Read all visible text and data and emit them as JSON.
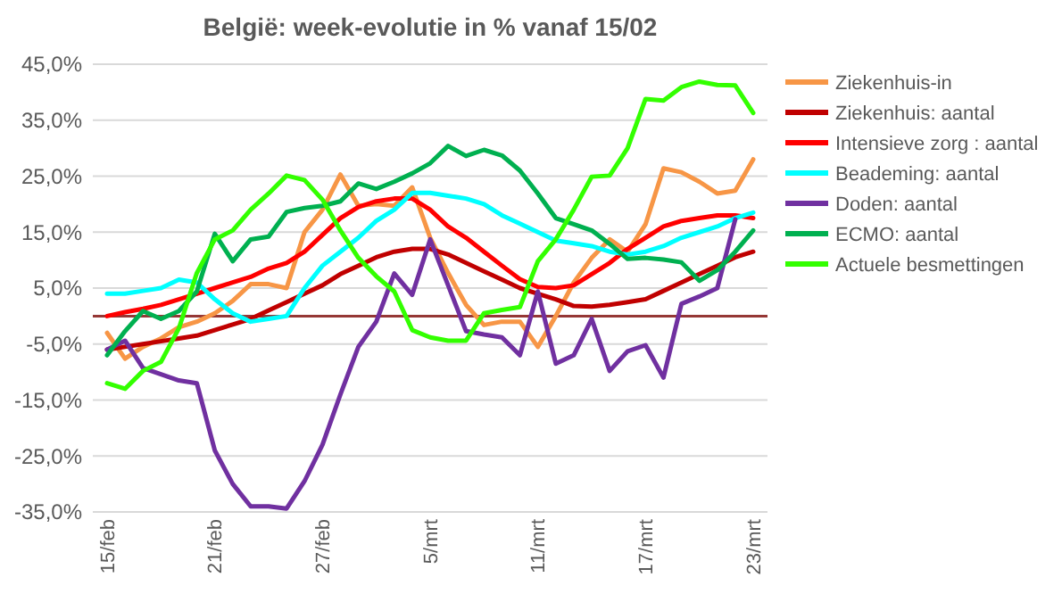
{
  "chart_data": {
    "type": "line",
    "title": "België:  week-evolutie  in %  vanaf 15/02",
    "categories": [
      "15/feb",
      null,
      null,
      null,
      null,
      null,
      "21/feb",
      null,
      null,
      null,
      null,
      null,
      "27/feb",
      null,
      null,
      null,
      null,
      null,
      "5/mrt",
      null,
      null,
      null,
      null,
      null,
      "11/mrt",
      null,
      null,
      null,
      null,
      null,
      "17/mrt",
      null,
      null,
      null,
      null,
      null,
      "23/mrt"
    ],
    "ylim": [
      -35,
      45
    ],
    "yticks": [
      {
        "value": -35,
        "label": "-35,0%"
      },
      {
        "value": -25,
        "label": "-25,0%"
      },
      {
        "value": -15,
        "label": "-15,0%"
      },
      {
        "value": -5,
        "label": "-5,0%"
      },
      {
        "value": 5,
        "label": "5,0%"
      },
      {
        "value": 15,
        "label": "15,0%"
      },
      {
        "value": 25,
        "label": "25,0%"
      },
      {
        "value": 35,
        "label": "35,0%"
      },
      {
        "value": 45,
        "label": "45,0%"
      }
    ],
    "grid": "y",
    "legend": "right",
    "ref_lines": [
      {
        "axis": "y",
        "value": 0,
        "color": "#953735"
      }
    ],
    "marker": "none",
    "line_style": "solid",
    "series": [
      {
        "name": "Ziekenhuis-in",
        "color": "#f79646",
        "values": [
          -3,
          -7.6,
          -5.5,
          -4,
          -2,
          -1,
          0.5,
          2.7,
          5.7,
          5.7,
          5,
          15,
          19,
          25.3,
          19.7,
          20,
          19.7,
          23,
          14,
          7.7,
          2,
          -1.6,
          -1,
          -1,
          -5.5,
          0,
          6,
          10.4,
          13.7,
          11.5,
          16.4,
          26.4,
          25.7,
          24,
          21.9,
          22.4,
          28
        ]
      },
      {
        "name": "Ziekenhuis: aantal",
        "color": "#c00000",
        "values": [
          -6,
          -5.5,
          -5,
          -4.5,
          -4,
          -3.5,
          -2.5,
          -1.5,
          -0.5,
          1,
          2.5,
          4,
          5.5,
          7.5,
          9,
          10.5,
          11.5,
          12,
          12,
          11,
          9.5,
          8,
          6.5,
          5,
          4,
          3,
          1.8,
          1.7,
          2,
          2.5,
          3,
          4.5,
          6,
          7.5,
          9,
          10.5,
          11.5
        ]
      },
      {
        "name": "Intensieve zorg : aantal",
        "color": "#ff0000",
        "values": [
          0,
          0.7,
          1.3,
          2,
          3,
          4,
          5,
          6,
          7,
          8.5,
          9.5,
          11.5,
          14.5,
          17.5,
          19.5,
          20.5,
          21,
          21,
          19,
          16,
          14,
          11.5,
          9,
          6.6,
          5.2,
          5,
          5.5,
          7.5,
          9.5,
          12,
          14,
          16,
          17,
          17.5,
          18,
          18,
          17.5
        ]
      },
      {
        "name": "Beademing: aantal",
        "color": "#00ffff",
        "values": [
          4,
          4,
          4.5,
          5,
          6.5,
          6,
          3,
          0.5,
          -1,
          -0.5,
          0,
          5,
          9,
          11.5,
          14,
          17,
          19,
          22,
          22,
          21.5,
          21,
          20,
          18,
          16.5,
          15,
          13.5,
          13,
          12.5,
          11.5,
          11,
          11.5,
          12.5,
          14,
          15,
          16,
          17.5,
          18.5
        ]
      },
      {
        "name": "Doden: aantal",
        "color": "#7030a0",
        "values": [
          -6,
          -4.4,
          -9.3,
          -10.4,
          -11.5,
          -12,
          -24,
          -30,
          -34,
          -34,
          -34.4,
          -29.5,
          -23,
          -14,
          -5.5,
          -1,
          7.6,
          3.8,
          13.7,
          5.5,
          -2.7,
          -3.3,
          -3.8,
          -7,
          4.4,
          -8.5,
          -7,
          -0.5,
          -9.8,
          -6.3,
          -5.2,
          -11,
          2.2,
          3.5,
          5,
          17.3,
          null
        ]
      },
      {
        "name": "ECMO: aantal",
        "color": "#00b050",
        "values": [
          -7,
          -2.7,
          0.9,
          -0.5,
          0.9,
          4.4,
          14.7,
          9.8,
          13.7,
          14.2,
          18.6,
          19.3,
          19.7,
          20.5,
          23.7,
          22.7,
          24,
          25.5,
          27.3,
          30.4,
          28.6,
          29.7,
          28.7,
          26,
          21.9,
          17.5,
          16.4,
          15.3,
          12.9,
          10.2,
          10.4,
          10.1,
          9.6,
          6.3,
          8.2,
          11.5,
          15.3
        ]
      },
      {
        "name": "Actuele besmettingen",
        "color": "#33ff00",
        "values": [
          -12,
          -13,
          -9.8,
          -8.2,
          -2.2,
          7.7,
          13.7,
          15.3,
          19,
          21.9,
          25.1,
          24.3,
          20.8,
          15.3,
          10.4,
          7.1,
          4.4,
          -2.5,
          -3.8,
          -4.4,
          -4.4,
          0.5,
          1.1,
          1.6,
          9.8,
          13.7,
          19,
          24.9,
          25.1,
          30,
          38.8,
          38.5,
          40.9,
          41.9,
          41.3,
          41.2,
          36.3
        ]
      }
    ]
  }
}
